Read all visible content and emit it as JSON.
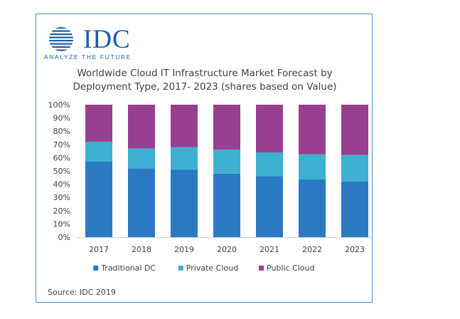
{
  "logo": {
    "brand": "IDC",
    "tagline": "ANALYZE THE FUTURE"
  },
  "source_note": "Source: IDC 2019",
  "colors": {
    "border": "#4a8fd0",
    "brand": "#1b5ea7"
  },
  "chart_data": {
    "type": "bar",
    "stacked": true,
    "title": "Worldwide Cloud IT Infrastructure Market Forecast by",
    "subtitle": "Deployment Type, 2017- 2023 (shares based on Value)",
    "categories": [
      "2017",
      "2018",
      "2019",
      "2020",
      "2021",
      "2022",
      "2023"
    ],
    "series": [
      {
        "name": "Traditional DC",
        "color": "#2a79c2",
        "values": [
          57,
          52,
          51,
          48,
          46,
          43.5,
          42
        ]
      },
      {
        "name": "Private Cloud",
        "color": "#3db1cf",
        "values": [
          15,
          15,
          17,
          18,
          18,
          19,
          20
        ]
      },
      {
        "name": "Public Cloud",
        "color": "#983f91",
        "values": [
          28,
          33,
          32,
          34,
          36,
          37.5,
          38
        ]
      }
    ],
    "yticks": [
      "0%",
      "10%",
      "20%",
      "30%",
      "40%",
      "50%",
      "60%",
      "70%",
      "80%",
      "90%",
      "100%"
    ],
    "ylim": [
      0,
      100
    ],
    "xlabel": "",
    "ylabel": "",
    "grid": false,
    "legend_position": "bottom"
  }
}
